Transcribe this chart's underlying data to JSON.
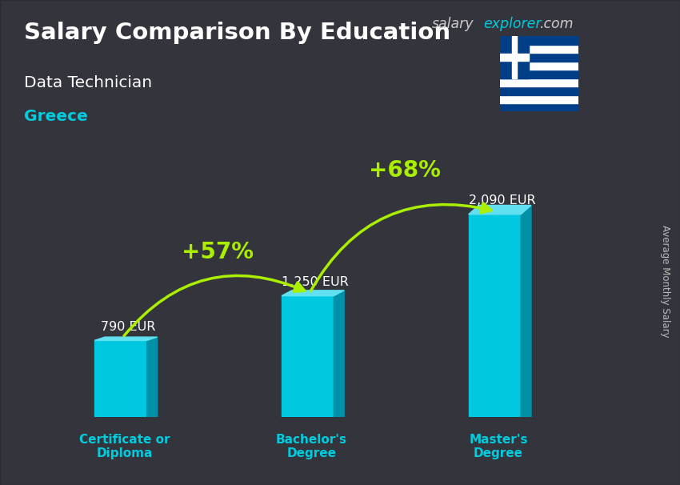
{
  "title": "Salary Comparison By Education",
  "subtitle": "Data Technician",
  "country": "Greece",
  "categories": [
    "Certificate or\nDiploma",
    "Bachelor's\nDegree",
    "Master's\nDegree"
  ],
  "values": [
    790,
    1250,
    2090
  ],
  "value_labels": [
    "790 EUR",
    "1,250 EUR",
    "2,090 EUR"
  ],
  "pct_labels": [
    "+57%",
    "+68%"
  ],
  "bar_front_color": "#00c8e0",
  "bar_side_color": "#0090a8",
  "bar_top_color": "#60e0f0",
  "bar_width": 0.28,
  "title_color": "#ffffff",
  "subtitle_color": "#ffffff",
  "country_color": "#00ccdd",
  "value_color": "#ffffff",
  "pct_color": "#aaee00",
  "arrow_color": "#66ee00",
  "xlabel_color": "#00ccdd",
  "site_color_salary": "#cccccc",
  "site_color_explorer": "#00ccdd",
  "site_color_dot_com": "#cccccc",
  "ylabel_text": "Average Monthly Salary",
  "bg_color": "#555555",
  "overlay_color": "#1a1a2a",
  "overlay_alpha": 0.55,
  "ylim": [
    0,
    2800
  ],
  "bar_positions": [
    0.5,
    1.5,
    2.5
  ],
  "xlim": [
    0,
    3.2
  ],
  "figsize": [
    8.5,
    6.06
  ],
  "dpi": 100,
  "flag_stripes": [
    "#003F87",
    "#ffffff",
    "#003F87",
    "#ffffff",
    "#003F87",
    "#ffffff",
    "#003F87",
    "#ffffff",
    "#003F87"
  ],
  "flag_blue": "#003F87"
}
